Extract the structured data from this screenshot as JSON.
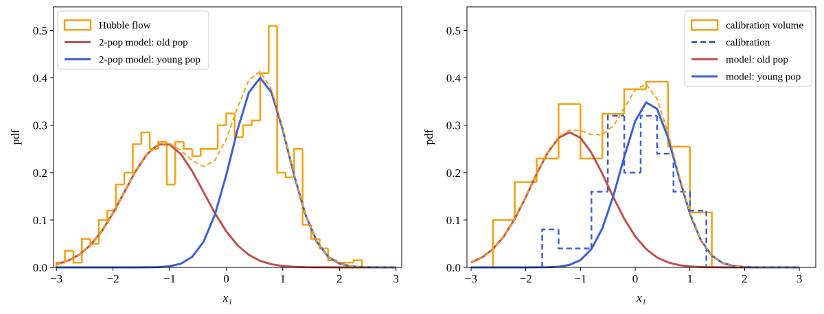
{
  "chart_data": [
    {
      "type": "histogram",
      "xlabel": "x₁",
      "ylabel": "pdf",
      "legend": "upper left",
      "xlim": [
        -3.05,
        3.1
      ],
      "ylim": [
        0,
        0.55
      ],
      "xticks": [
        {
          "value": -3,
          "label": "−3"
        },
        {
          "value": -2,
          "label": "−2"
        },
        {
          "value": -1,
          "label": "−1"
        },
        0,
        1,
        2,
        3
      ],
      "yticks": [
        {
          "value": 0,
          "label": "0.0"
        },
        0.1,
        0.2,
        0.3,
        0.4,
        0.5
      ],
      "histograms": [
        {
          "name": "Hubble flow",
          "color": "#f5a00f",
          "dashed": false,
          "bins": [
            -3,
            -2.85,
            -2.7,
            -2.55,
            -2.4,
            -2.25,
            -2.1,
            -1.95,
            -1.8,
            -1.65,
            -1.5,
            -1.35,
            -1.2,
            -1.05,
            -0.9,
            -0.75,
            -0.6,
            -0.45,
            -0.3,
            -0.15,
            0,
            0.15,
            0.3,
            0.45,
            0.6,
            0.75,
            0.9,
            1.05,
            1.2,
            1.35,
            1.5,
            1.65,
            1.8,
            1.95,
            2.1,
            2.25,
            2.4
          ],
          "counts": [
            0.01,
            0.035,
            0.01,
            0.06,
            0.05,
            0.1,
            0.12,
            0.175,
            0.2,
            0.26,
            0.285,
            0.25,
            0.265,
            0.175,
            0.265,
            0.25,
            0.235,
            0.25,
            0.25,
            0.3,
            0.325,
            0.275,
            0.3,
            0.31,
            0.41,
            0.51,
            0.2,
            0.19,
            0.25,
            0.09,
            0.06,
            0.04,
            0.015,
            0.01,
            0.01,
            0.015
          ]
        }
      ],
      "x": [
        -3,
        -2.8,
        -2.6,
        -2.4,
        -2.2,
        -2,
        -1.8,
        -1.6,
        -1.4,
        -1.2,
        -1,
        -0.8,
        -0.6,
        -0.4,
        -0.2,
        0,
        0.2,
        0.4,
        0.6,
        0.8,
        1,
        1.2,
        1.4,
        1.6,
        1.8,
        2,
        2.2,
        2.4,
        2.6,
        2.8,
        3
      ],
      "series": [
        {
          "name": "2-pop model: old pop",
          "color": "#c44e4e",
          "dashed": false,
          "values": [
            0.0066,
            0.0137,
            0.0264,
            0.0467,
            0.0762,
            0.1146,
            0.1589,
            0.203,
            0.239,
            0.2594,
            0.2594,
            0.239,
            0.203,
            0.1589,
            0.1146,
            0.0762,
            0.0467,
            0.0264,
            0.0137,
            0.0066,
            0.0029,
            0.0012,
            0.0004,
            0.0002,
            0.0001,
            0,
            0,
            0,
            0,
            0,
            0
          ]
        },
        {
          "name": "2-pop model: young pop",
          "color": "#3a5fd9",
          "dashed": false,
          "values": [
            0,
            0,
            0,
            0,
            0,
            0,
            0,
            0,
            0.0001,
            0.0006,
            0.0024,
            0.0079,
            0.0224,
            0.0541,
            0.1112,
            0.1947,
            0.2904,
            0.3692,
            0.4,
            0.3692,
            0.2904,
            0.1947,
            0.1112,
            0.0541,
            0.0224,
            0.0079,
            0.0024,
            0.0006,
            0.0001,
            0,
            0
          ]
        },
        {
          "color": "#f5a00f",
          "dashed": true,
          "values": [
            0.0066,
            0.0137,
            0.0264,
            0.0467,
            0.0762,
            0.1146,
            0.1589,
            0.203,
            0.2391,
            0.26,
            0.2618,
            0.2469,
            0.2254,
            0.213,
            0.2258,
            0.2709,
            0.3371,
            0.3956,
            0.4137,
            0.3758,
            0.2933,
            0.1959,
            0.1116,
            0.0543,
            0.0225,
            0.0079,
            0.0024,
            0.0006,
            0.0001,
            0,
            0
          ]
        }
      ]
    },
    {
      "type": "histogram",
      "xlabel": "x₁",
      "ylabel": "pdf",
      "legend": "upper right",
      "xlim": [
        -3.075,
        3.3
      ],
      "ylim": [
        0,
        0.55
      ],
      "xticks": [
        {
          "value": -3,
          "label": "−3"
        },
        {
          "value": -2,
          "label": "−2"
        },
        {
          "value": -1,
          "label": "−1"
        },
        0,
        1,
        2,
        3
      ],
      "yticks": [
        {
          "value": 0,
          "label": "0.0"
        },
        0.1,
        0.2,
        0.3,
        0.4,
        0.5
      ],
      "histograms": [
        {
          "name": "calibration volume",
          "color": "#f5a00f",
          "dashed": false,
          "bins": [
            -2.6,
            -2.2,
            -1.8,
            -1.4,
            -1,
            -0.6,
            -0.2,
            0.2,
            0.6,
            1,
            1.4
          ],
          "counts": [
            0.1,
            0.18,
            0.23,
            0.345,
            0.23,
            0.324,
            0.376,
            0.392,
            0.255,
            0.116
          ]
        },
        {
          "name": "calibration",
          "color": "#3a5fd9",
          "dashed": true,
          "bins": [
            -1.7,
            -1.4,
            -1.1,
            -0.8,
            -0.5,
            -0.2,
            0.1,
            0.4,
            0.7,
            1,
            1.3
          ],
          "counts": [
            0.08,
            0.04,
            0.04,
            0.16,
            0.32,
            0.2,
            0.32,
            0.24,
            0.16,
            0.12
          ]
        }
      ],
      "x": [
        -3,
        -2.8,
        -2.6,
        -2.4,
        -2.2,
        -2,
        -1.8,
        -1.6,
        -1.4,
        -1.2,
        -1,
        -0.8,
        -0.6,
        -0.4,
        -0.2,
        0,
        0.2,
        0.4,
        0.6,
        0.8,
        1,
        1.2,
        1.4,
        1.6,
        1.8,
        2,
        2.2,
        2.4,
        2.6,
        2.8,
        3
      ],
      "series": [
        {
          "name": "model: old pop",
          "color": "#c44e4e",
          "dashed": false,
          "values": [
            0.0105,
            0.0209,
            0.0386,
            0.0656,
            0.1027,
            0.1483,
            0.1974,
            0.2421,
            0.2736,
            0.285,
            0.2736,
            0.2421,
            0.1974,
            0.1483,
            0.1027,
            0.0656,
            0.0386,
            0.0209,
            0.0105,
            0.0048,
            0.002,
            0.0008,
            0.0003,
            0.0001,
            0,
            0,
            0,
            0,
            0,
            0,
            0
          ]
        },
        {
          "name": "model: young pop",
          "color": "#3a5fd9",
          "dashed": false,
          "values": [
            0,
            0,
            0,
            0,
            0,
            0,
            0.0001,
            0.0004,
            0.0015,
            0.0052,
            0.0154,
            0.0386,
            0.0825,
            0.1503,
            0.2334,
            0.3089,
            0.3483,
            0.3346,
            0.2739,
            0.1911,
            0.1136,
            0.0576,
            0.0249,
            0.0091,
            0.0029,
            0.0008,
            0.0002,
            0,
            0,
            0,
            0
          ]
        },
        {
          "color": "#f5a00f",
          "dashed": true,
          "values": [
            0.0105,
            0.0209,
            0.0386,
            0.0656,
            0.1027,
            0.1483,
            0.1975,
            0.2425,
            0.2751,
            0.2902,
            0.289,
            0.2807,
            0.2799,
            0.2986,
            0.3361,
            0.3745,
            0.3869,
            0.3555,
            0.2844,
            0.1959,
            0.1156,
            0.0584,
            0.0252,
            0.0092,
            0.0029,
            0.0008,
            0.0002,
            0,
            0,
            0,
            0
          ]
        }
      ]
    }
  ]
}
